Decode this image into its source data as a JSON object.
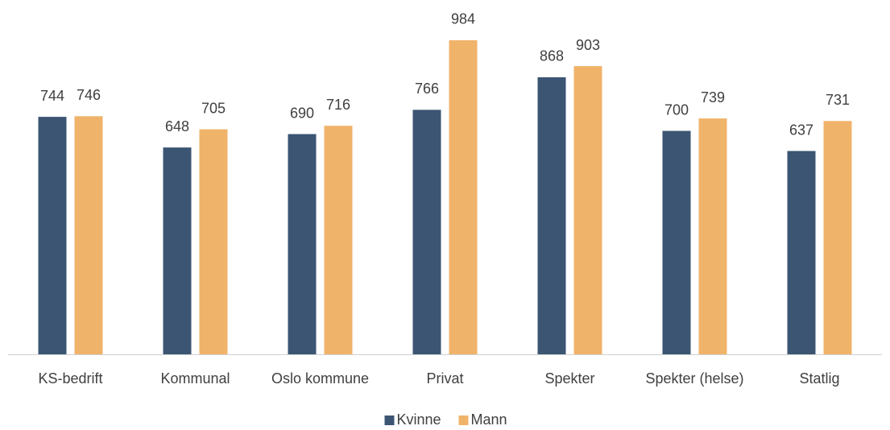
{
  "chart_data": {
    "type": "bar",
    "categories": [
      "KS-bedrift",
      "Kommunal",
      "Oslo kommune",
      "Privat",
      "Spekter",
      "Spekter (helse)",
      "Statlig"
    ],
    "series": [
      {
        "name": "Kvinne",
        "color": "#3b5573",
        "values": [
          744,
          648,
          690,
          766,
          868,
          700,
          637
        ]
      },
      {
        "name": "Mann",
        "color": "#f0b36a",
        "values": [
          746,
          705,
          716,
          984,
          903,
          739,
          731
        ]
      }
    ],
    "ylim": [
      0,
      1100
    ],
    "legend": "bottom"
  }
}
